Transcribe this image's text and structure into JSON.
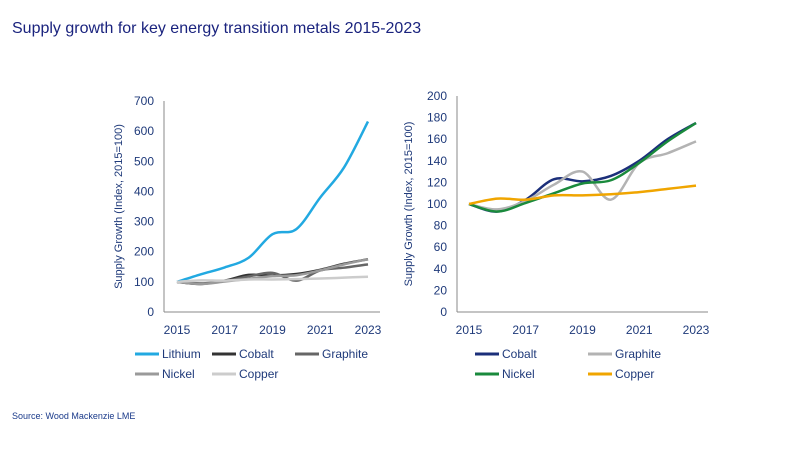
{
  "title": "Supply growth for key energy transition metals 2015-2023",
  "source": "Source: Wood Mackenzie LME",
  "chart_data": [
    {
      "type": "line",
      "ylabel": "Supply Growth (Index, 2015=100)",
      "ylim": [
        0,
        700
      ],
      "yticks": [
        0,
        100,
        200,
        300,
        400,
        500,
        600,
        700
      ],
      "x": [
        2015,
        2016,
        2017,
        2018,
        2019,
        2020,
        2021,
        2022,
        2023
      ],
      "xticks": [
        "2015",
        "2017",
        "2019",
        "2021",
        "2023"
      ],
      "grid": false,
      "legend": "bottom",
      "series": [
        {
          "name": "Lithium",
          "color": "#22a9e1",
          "values": [
            100,
            125,
            148,
            180,
            258,
            275,
            380,
            480,
            632
          ]
        },
        {
          "name": "Cobalt",
          "color": "#333333",
          "values": [
            100,
            93,
            104,
            123,
            121,
            126,
            140,
            160,
            175
          ]
        },
        {
          "name": "Graphite",
          "color": "#666666",
          "values": [
            100,
            95,
            103,
            118,
            130,
            104,
            138,
            147,
            158
          ]
        },
        {
          "name": "Nickel",
          "color": "#9a9a9a",
          "values": [
            100,
            93,
            101,
            110,
            119,
            122,
            138,
            158,
            175
          ]
        },
        {
          "name": "Copper",
          "color": "#cccccc",
          "values": [
            100,
            105,
            104,
            108,
            108,
            109,
            111,
            114,
            117
          ]
        }
      ]
    },
    {
      "type": "line",
      "ylabel": "Supply Growth (Index, 2015=100)",
      "ylim": [
        0,
        200
      ],
      "yticks": [
        0,
        20,
        40,
        60,
        80,
        100,
        120,
        140,
        160,
        180,
        200
      ],
      "x": [
        2015,
        2016,
        2017,
        2018,
        2019,
        2020,
        2021,
        2022,
        2023
      ],
      "xticks": [
        "2015",
        "2017",
        "2019",
        "2021",
        "2023"
      ],
      "grid": false,
      "legend": "bottom",
      "series": [
        {
          "name": "Cobalt",
          "color": "#1b2f7a",
          "values": [
            100,
            93,
            104,
            123,
            121,
            126,
            140,
            160,
            175
          ]
        },
        {
          "name": "Graphite",
          "color": "#b3b3b3",
          "values": [
            100,
            95,
            103,
            118,
            130,
            104,
            138,
            147,
            158
          ]
        },
        {
          "name": "Nickel",
          "color": "#1a8a3c",
          "values": [
            100,
            93,
            101,
            110,
            119,
            122,
            138,
            158,
            175
          ]
        },
        {
          "name": "Copper",
          "color": "#f0a500",
          "values": [
            100,
            105,
            104,
            108,
            108,
            109,
            111,
            114,
            117
          ]
        }
      ]
    }
  ]
}
